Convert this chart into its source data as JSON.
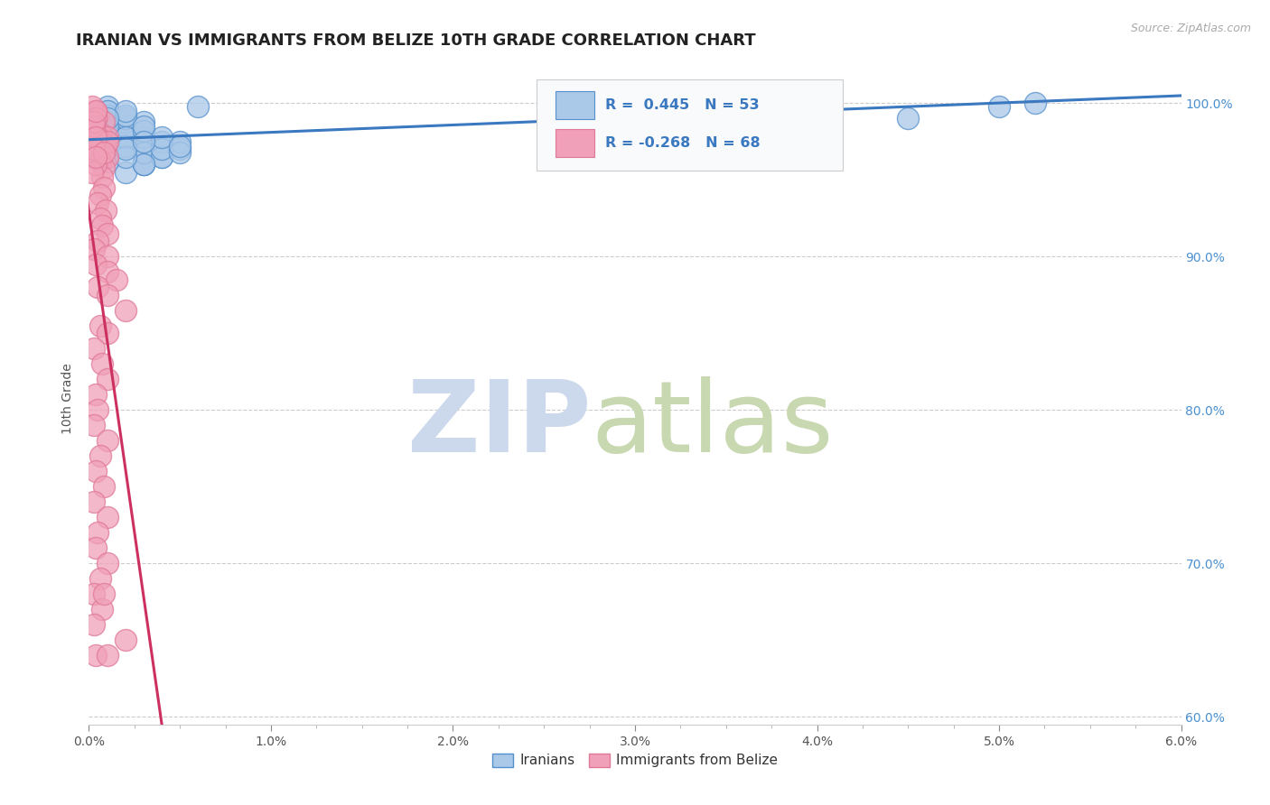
{
  "title": "IRANIAN VS IMMIGRANTS FROM BELIZE 10TH GRADE CORRELATION CHART",
  "source_text": "Source: ZipAtlas.com",
  "ylabel": "10th Grade",
  "xlim": [
    0.0,
    0.06
  ],
  "ylim": [
    0.595,
    1.02
  ],
  "xtick_vals": [
    0.0,
    0.01,
    0.02,
    0.03,
    0.04,
    0.05,
    0.06
  ],
  "xtick_labels": [
    "0.0%",
    "",
    "",
    "",
    "",
    "",
    "6.0%"
  ],
  "ytick_vals": [
    0.6,
    0.7,
    0.8,
    0.9,
    1.0
  ],
  "ytick_labels": [
    "60.0%",
    "70.0%",
    "80.0%",
    "90.0%",
    "100.0%"
  ],
  "iranian_R": 0.445,
  "iranian_N": 53,
  "belize_R": -0.268,
  "belize_N": 68,
  "iranian_color": "#aac8e8",
  "belize_color": "#f0a0b8",
  "iranian_edge_color": "#5590cc",
  "belize_edge_color": "#e07898",
  "iranian_line_color": "#3a78c0",
  "belize_line_color": "#cc3060",
  "belize_line_dashed_color": "#e8a0b8",
  "background_color": "#ffffff",
  "title_fontsize": 13,
  "axis_label_fontsize": 10,
  "tick_fontsize": 10,
  "iranian_x": [
    0.001,
    0.002,
    0.001,
    0.003,
    0.002,
    0.004,
    0.001,
    0.002,
    0.003,
    0.001,
    0.002,
    0.001,
    0.003,
    0.002,
    0.001,
    0.004,
    0.003,
    0.002,
    0.001,
    0.003,
    0.005,
    0.002,
    0.001,
    0.004,
    0.003,
    0.002,
    0.001,
    0.003,
    0.002,
    0.004,
    0.001,
    0.005,
    0.003,
    0.002,
    0.001,
    0.004,
    0.003,
    0.002,
    0.001,
    0.005,
    0.002,
    0.003,
    0.001,
    0.004,
    0.002,
    0.005,
    0.003,
    0.05,
    0.052,
    0.045,
    0.002,
    0.003,
    0.006
  ],
  "iranian_y": [
    0.975,
    0.98,
    0.99,
    0.965,
    0.985,
    0.97,
    0.995,
    0.972,
    0.96,
    0.988,
    0.978,
    0.982,
    0.968,
    0.955,
    0.998,
    0.965,
    0.975,
    0.988,
    0.962,
    0.978,
    0.97,
    0.985,
    0.992,
    0.975,
    0.96,
    0.99,
    0.995,
    0.968,
    0.972,
    0.965,
    0.98,
    0.975,
    0.988,
    0.992,
    0.985,
    0.97,
    0.96,
    0.978,
    0.975,
    0.968,
    0.995,
    0.982,
    0.99,
    0.978,
    0.965,
    0.972,
    0.985,
    0.998,
    1.0,
    0.99,
    0.97,
    0.975,
    0.998
  ],
  "belize_x": [
    0.0005,
    0.0008,
    0.0003,
    0.0006,
    0.001,
    0.0004,
    0.0007,
    0.0009,
    0.0002,
    0.0005,
    0.0003,
    0.001,
    0.0006,
    0.0004,
    0.0008,
    0.0005,
    0.0003,
    0.0007,
    0.001,
    0.0004,
    0.0002,
    0.0008,
    0.0006,
    0.0003,
    0.0005,
    0.0004,
    0.0009,
    0.0006,
    0.0003,
    0.0007,
    0.001,
    0.0004,
    0.0005,
    0.0008,
    0.0003,
    0.001,
    0.0004,
    0.001,
    0.0015,
    0.0005,
    0.001,
    0.0004,
    0.002,
    0.0006,
    0.001,
    0.0003,
    0.0007,
    0.001,
    0.0004,
    0.0005,
    0.0003,
    0.001,
    0.0006,
    0.0004,
    0.0008,
    0.0003,
    0.001,
    0.0005,
    0.0004,
    0.001,
    0.0006,
    0.0003,
    0.0007,
    0.002,
    0.0004,
    0.001,
    0.0008,
    0.0003
  ],
  "belize_y": [
    0.992,
    0.988,
    0.984,
    0.98,
    0.978,
    0.995,
    0.975,
    0.972,
    0.998,
    0.968,
    0.97,
    0.965,
    0.962,
    0.99,
    0.958,
    0.978,
    0.985,
    0.952,
    0.975,
    0.96,
    0.955,
    0.945,
    0.94,
    0.988,
    0.935,
    0.978,
    0.93,
    0.925,
    0.97,
    0.92,
    0.915,
    0.995,
    0.91,
    0.968,
    0.905,
    0.9,
    0.895,
    0.89,
    0.885,
    0.88,
    0.875,
    0.965,
    0.865,
    0.855,
    0.85,
    0.84,
    0.83,
    0.82,
    0.81,
    0.8,
    0.79,
    0.78,
    0.77,
    0.76,
    0.75,
    0.74,
    0.73,
    0.72,
    0.71,
    0.7,
    0.69,
    0.68,
    0.67,
    0.65,
    0.64,
    0.64,
    0.68,
    0.66
  ]
}
